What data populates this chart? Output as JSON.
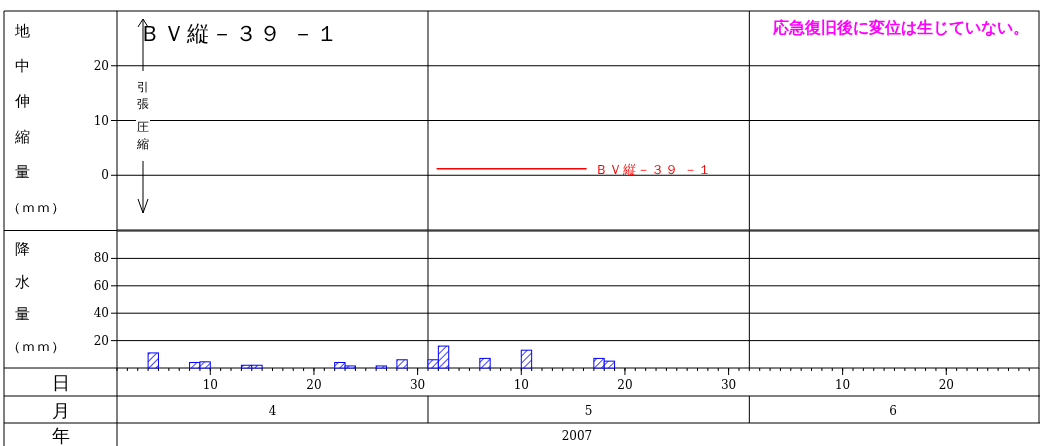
{
  "chart_data": [
    {
      "type": "line",
      "title": "ＢＶ縦－３９ －１",
      "ylabel": "地中伸縮量（ｍｍ）",
      "annotations": [
        "応急復旧後に変位は生じていない。",
        "引張",
        "圧縮"
      ],
      "series": [
        {
          "name": "ＢＶ縦－３９ －１",
          "color": "#ff0000"
        }
      ],
      "ylim": [
        -10,
        30
      ],
      "yticks": [
        0,
        10,
        20
      ],
      "grid": "y",
      "tick_labels": "y"
    },
    {
      "type": "bar",
      "ylabel": "降水量（ｍｍ）",
      "annotations": [
        "日",
        "月",
        "年",
        "4",
        "5",
        "6",
        "2007"
      ],
      "x": [
        "2007-04-04T12:00",
        "2007-04-08T12:00",
        "2007-04-09T12:00",
        "2007-04-13T12:00",
        "2007-04-14T12:00",
        "2007-04-22T12:00",
        "2007-04-23T12:00",
        "2007-04-26T12:00",
        "2007-04-28T12:00",
        "2007-05-01T12:00",
        "2007-05-02T12:00",
        "2007-05-06T12:00",
        "2007-05-10T12:00",
        "2007-05-17T12:00",
        "2007-05-18T12:00"
      ],
      "series": [
        {
          "color": "#0000ff",
          "values": [
            11,
            4,
            4.5,
            2,
            2,
            4,
            1.5,
            1.5,
            6,
            6,
            16,
            7,
            13,
            7,
            5
          ]
        }
      ],
      "xlim": [
        "2007-04-01",
        "2007-06-28T18:00"
      ],
      "xticks": [
        {
          "value": "2007-04-10",
          "label": "10"
        },
        {
          "value": "2007-04-20",
          "label": "20"
        },
        {
          "value": "2007-04-30",
          "label": "30"
        },
        {
          "value": "2007-05-10",
          "label": "10"
        },
        {
          "value": "2007-05-20",
          "label": "20"
        },
        {
          "value": "2007-05-30",
          "label": "30"
        },
        {
          "value": "2007-06-10",
          "label": "10"
        },
        {
          "value": "2007-06-20",
          "label": "20"
        }
      ],
      "ylim": [
        0,
        100
      ],
      "yticks": [
        20,
        40,
        60,
        80
      ],
      "grid": "y",
      "ref_lines": [
        {
          "axis": "x",
          "value": "2007-05-01",
          "color": "#000000"
        },
        {
          "axis": "x",
          "value": "2007-06-01",
          "color": "#000000"
        }
      ]
    }
  ]
}
